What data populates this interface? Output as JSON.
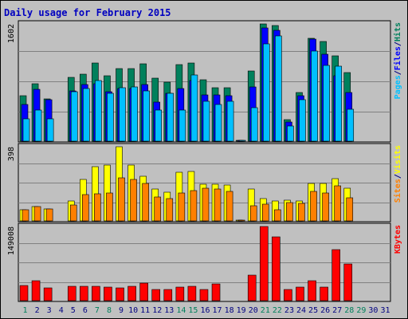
{
  "colors": {
    "background": "#c0c0c0",
    "plot": "#c0c0c0",
    "grid": "#808080",
    "title": "#0000c0",
    "hits": "#00805c",
    "files": "#0000ff",
    "pages": "#00c0ff",
    "visits": "#ffff00",
    "sites": "#ff8000",
    "kbytes": "#ff0000",
    "weekend": "#00805c",
    "weekday": "#000080",
    "border": "#000000"
  },
  "chart_data": {
    "type": "bar",
    "title": "Daily usage for February 2015",
    "x": [
      1,
      2,
      3,
      4,
      5,
      6,
      7,
      8,
      9,
      10,
      11,
      12,
      13,
      14,
      15,
      16,
      17,
      18,
      19,
      20,
      21,
      22,
      23,
      24,
      25,
      26,
      27,
      28,
      29,
      30,
      31
    ],
    "weekend_days": [
      1,
      7,
      8,
      14,
      15,
      21,
      22,
      28,
      29
    ],
    "panels": [
      {
        "name": "hits-files-pages",
        "ymax_label": "1602",
        "ymax": 1602,
        "legend": [
          {
            "label": "Pages",
            "color": "#00c0ff"
          },
          {
            "label": "/",
            "color": "#000080"
          },
          {
            "label": "Files",
            "color": "#0000ff"
          },
          {
            "label": "/",
            "color": "#000080"
          },
          {
            "label": "Hits",
            "color": "#00805c"
          }
        ],
        "series": [
          {
            "name": "Hits",
            "color": "#00805c",
            "values": [
              620,
              790,
              580,
              0,
              870,
              910,
              1070,
              890,
              990,
              990,
              1060,
              860,
              810,
              1050,
              1070,
              835,
              730,
              730,
              15,
              960,
              1602,
              1580,
              290,
              660,
              1410,
              1360,
              1170,
              940,
              0,
              0,
              0
            ]
          },
          {
            "name": "Files",
            "color": "#0000ff",
            "values": [
              505,
              705,
              565,
              0,
              690,
              770,
              790,
              680,
              720,
              720,
              770,
              535,
              650,
              720,
              830,
              630,
              630,
              620,
              15,
              740,
              1550,
              1520,
              265,
              620,
              1390,
              1190,
              890,
              660,
              0,
              0,
              0
            ]
          },
          {
            "name": "Pages",
            "color": "#00c0ff",
            "values": [
              300,
              420,
              310,
              0,
              680,
              720,
              830,
              650,
              730,
              740,
              690,
              420,
              650,
              420,
              900,
              550,
              500,
              550,
              15,
              460,
              1330,
              1440,
              205,
              570,
              1230,
              1030,
              1020,
              440,
              0,
              0,
              0
            ]
          }
        ]
      },
      {
        "name": "visits-sites",
        "ymax_label": "398",
        "ymax": 398,
        "legend": [
          {
            "label": "Sites",
            "color": "#ff8000"
          },
          {
            "label": "/",
            "color": "#000080"
          },
          {
            "label": "Visits",
            "color": "#ffff00"
          }
        ],
        "series": [
          {
            "name": "Visits",
            "color": "#ffff00",
            "values": [
              58,
              76,
              65,
              0,
              105,
              224,
              293,
              298,
              398,
              300,
              240,
              172,
              155,
              260,
              265,
              198,
              195,
              193,
              6,
              170,
              120,
              108,
              110,
              108,
              200,
              199,
              225,
              175,
              0,
              0,
              0
            ]
          },
          {
            "name": "Sites",
            "color": "#ff8000",
            "values": [
              58,
              76,
              63,
              0,
              84,
              140,
              146,
              150,
              230,
              223,
              200,
              130,
              120,
              150,
              163,
              175,
              170,
              160,
              6,
              80,
              92,
              58,
              97,
              93,
              158,
              150,
              190,
              123,
              0,
              0,
              0
            ]
          }
        ]
      },
      {
        "name": "kbytes",
        "ymax_label": "149008",
        "ymax": 149008,
        "legend": [
          {
            "label": "KBytes",
            "color": "#ff0000"
          }
        ],
        "series": [
          {
            "name": "KBytes",
            "color": "#ff0000",
            "values": [
              31000,
              40000,
              25000,
              0,
              29000,
              29000,
              29000,
              28000,
              26000,
              29000,
              36000,
              23000,
              23000,
              28000,
              29000,
              23000,
              33000,
              0,
              0,
              51000,
              149000,
              128000,
              23000,
              27000,
              40000,
              28000,
              103000,
              73000,
              0,
              0,
              0
            ]
          }
        ]
      }
    ]
  }
}
